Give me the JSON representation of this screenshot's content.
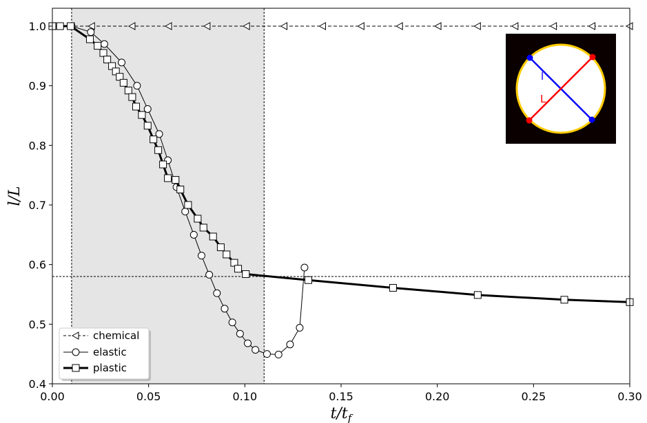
{
  "chart_data": {
    "type": "line",
    "xlabel": "t/t_f",
    "ylabel": "l/L",
    "xlim": [
      0.0,
      0.3
    ],
    "ylim": [
      0.4,
      1.03
    ],
    "xticks": [
      "0.00",
      "0.05",
      "0.10",
      "0.15",
      "0.20",
      "0.25",
      "0.30"
    ],
    "xtick_values": [
      0.0,
      0.05,
      0.1,
      0.15,
      0.2,
      0.25,
      0.3
    ],
    "yticks": [
      "0.4",
      "0.5",
      "0.6",
      "0.7",
      "0.8",
      "0.9",
      "1.0"
    ],
    "ytick_values": [
      0.4,
      0.5,
      0.6,
      0.7,
      0.8,
      0.9,
      1.0
    ],
    "grid": false,
    "legend_position": "lower-left",
    "shaded_region": {
      "x": [
        0.01,
        0.11
      ],
      "color": "#e5e5e5"
    },
    "reference_lines": {
      "vertical": [
        0.01,
        0.11
      ],
      "horizontal": [
        0.58
      ]
    },
    "series": [
      {
        "name": "chemical",
        "marker": "triangle-left",
        "style": "dashed",
        "linewidth": 1,
        "x": [
          0.0,
          0.01,
          0.0205,
          0.0415,
          0.0605,
          0.0805,
          0.101,
          0.1205,
          0.1405,
          0.1605,
          0.1805,
          0.2005,
          0.221,
          0.2405,
          0.2605,
          0.2805,
          0.3
        ],
        "y": [
          1.0,
          1.0,
          1.0,
          1.0,
          1.0,
          1.0,
          1.0,
          1.0,
          1.0,
          1.0,
          1.0,
          1.0,
          1.0,
          1.0,
          1.0,
          1.0,
          1.0
        ]
      },
      {
        "name": "elastic",
        "marker": "circle",
        "style": "solid",
        "linewidth": 1,
        "x": [
          0.0,
          0.01,
          0.02,
          0.027,
          0.036,
          0.044,
          0.0495,
          0.0555,
          0.06,
          0.0645,
          0.069,
          0.0735,
          0.0775,
          0.0815,
          0.0855,
          0.0895,
          0.0935,
          0.0975,
          0.1015,
          0.1055,
          0.1115,
          0.1175,
          0.1235,
          0.1285,
          0.131
        ],
        "y": [
          1.0,
          1.0,
          0.99,
          0.97,
          0.939,
          0.9,
          0.861,
          0.819,
          0.775,
          0.73,
          0.689,
          0.65,
          0.615,
          0.583,
          0.552,
          0.526,
          0.503,
          0.484,
          0.468,
          0.457,
          0.45,
          0.449,
          0.466,
          0.494,
          0.595
        ]
      },
      {
        "name": "plastic",
        "marker": "square",
        "style": "solid",
        "linewidth": 3,
        "x": [
          0.0,
          0.004,
          0.0095,
          0.0195,
          0.0235,
          0.0265,
          0.0285,
          0.031,
          0.033,
          0.035,
          0.037,
          0.0395,
          0.0415,
          0.0435,
          0.0465,
          0.0495,
          0.0525,
          0.055,
          0.0575,
          0.06,
          0.064,
          0.0665,
          0.0705,
          0.0755,
          0.0785,
          0.0835,
          0.0875,
          0.0905,
          0.0945,
          0.0965,
          0.1005,
          0.133,
          0.177,
          0.221,
          0.266,
          0.3
        ],
        "y": [
          1.0,
          1.0,
          1.0,
          0.978,
          0.967,
          0.955,
          0.944,
          0.933,
          0.924,
          0.915,
          0.905,
          0.892,
          0.881,
          0.865,
          0.851,
          0.833,
          0.81,
          0.792,
          0.768,
          0.745,
          0.742,
          0.726,
          0.7,
          0.677,
          0.662,
          0.647,
          0.629,
          0.617,
          0.603,
          0.593,
          0.584,
          0.574,
          0.561,
          0.549,
          0.541,
          0.537
        ]
      }
    ]
  },
  "legend": {
    "chemical": "chemical",
    "elastic": "elastic",
    "plastic": "plastic"
  },
  "inset": {
    "label_l": "l",
    "label_L": "L",
    "colors": {
      "background": "#0a0000",
      "disk": "#ffffff",
      "rim": "#ffcc00",
      "short_axis": "#0000ff",
      "long_axis": "#ff0000"
    }
  }
}
